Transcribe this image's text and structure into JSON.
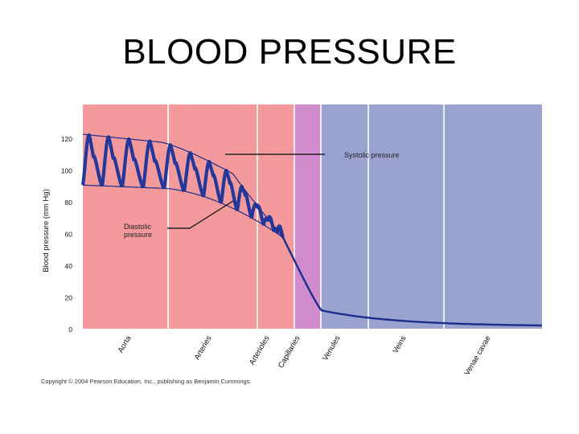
{
  "slide": {
    "title": "BLOOD PRESSURE"
  },
  "footer": {
    "copyright": "Copyright © 2004 Pearson Education, Inc., publishing as Benjamin Cummings."
  },
  "colors": {
    "arterial_region": "#f59a9c",
    "capillary_region": "#d08ccc",
    "venous_region": "#9aa2cf",
    "curve": "#1a2e8c",
    "pulse_fill": "#22389a",
    "annotation": "#222222"
  },
  "chart_data": {
    "type": "area",
    "title": "",
    "xlabel": "",
    "ylabel": "Blood pressure (mm Hg)",
    "ylim": [
      0,
      124
    ],
    "yticks": [
      0,
      20,
      40,
      60,
      80,
      100,
      120
    ],
    "grid": false,
    "categories": [
      "Aorta",
      "Arteries",
      "Arterioles",
      "Capillaries",
      "Venules",
      "Veins",
      "Venae cavae"
    ],
    "regions": [
      {
        "name": "arterial",
        "from": "Aorta",
        "to": "Arterioles"
      },
      {
        "name": "capillary",
        "from": "Capillaries",
        "to": "Capillaries"
      },
      {
        "name": "venous",
        "from": "Venules",
        "to": "Venae cavae"
      }
    ],
    "series": [
      {
        "name": "Systolic pressure",
        "values": [
          120,
          118,
          100,
          35,
          16,
          6,
          2
        ]
      },
      {
        "name": "Diastolic pressure",
        "values": [
          90,
          87,
          62,
          35,
          16,
          6,
          2
        ]
      }
    ],
    "annotations": [
      {
        "text": [
          "Systolic pressure"
        ],
        "target_series": "Systolic pressure"
      },
      {
        "text": [
          "Diastolic",
          "pressure"
        ],
        "target_series": "Diastolic pressure"
      }
    ]
  }
}
